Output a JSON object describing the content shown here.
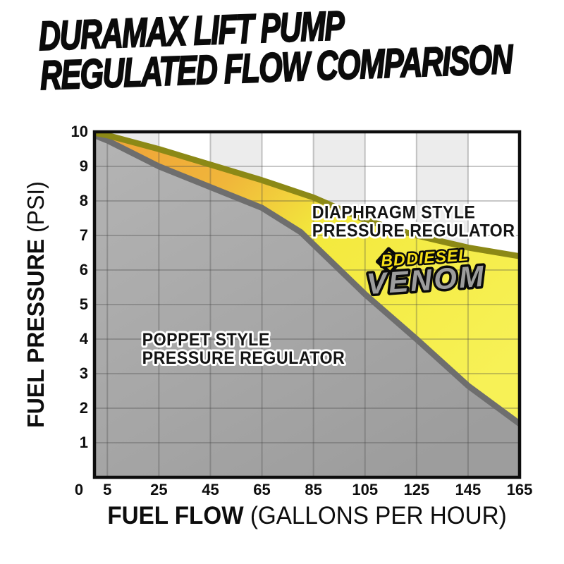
{
  "title": {
    "line1": "DURAMAX LIFT PUMP",
    "line2": "REGULATED FLOW COMPARISON"
  },
  "chart_data": {
    "type": "area",
    "xlim": [
      0,
      165
    ],
    "ylim": [
      0,
      10
    ],
    "x_ticks": [
      5,
      25,
      45,
      65,
      85,
      105,
      125,
      145,
      165
    ],
    "y_ticks": [
      0,
      1,
      2,
      3,
      4,
      5,
      6,
      7,
      8,
      9,
      10
    ],
    "origin_label": "0",
    "grid": true,
    "legend_position": "in-plot annotations",
    "x_axis_label": {
      "bold": "FUEL FLOW",
      "regular": "(GALLONS PER HOUR)"
    },
    "y_axis_label": {
      "bold": "FUEL PRESSURE",
      "regular": "(PSI)"
    },
    "background_band_edges": [
      0,
      25,
      45,
      65,
      85,
      105,
      125,
      145,
      165
    ],
    "series": [
      {
        "name": "diaphragm-style-pressure-regulator",
        "label_lines": [
          "DIAPHRAGM STYLE",
          "PRESSURE REGULATOR"
        ],
        "points": [
          [
            0,
            9.97
          ],
          [
            5,
            9.9
          ],
          [
            25,
            9.5
          ],
          [
            45,
            9.05
          ],
          [
            65,
            8.6
          ],
          [
            85,
            8.1
          ],
          [
            105,
            7.45
          ],
          [
            125,
            7.0
          ],
          [
            145,
            6.65
          ],
          [
            165,
            6.4
          ]
        ]
      },
      {
        "name": "poppet-style-pressure-regulator",
        "label_lines": [
          "POPPET STYLE",
          "PRESSURE REGULATOR"
        ],
        "points": [
          [
            0,
            9.9
          ],
          [
            5,
            9.75
          ],
          [
            25,
            9.0
          ],
          [
            45,
            8.4
          ],
          [
            65,
            7.8
          ],
          [
            80,
            7.1
          ],
          [
            105,
            5.3
          ],
          [
            125,
            4.0
          ],
          [
            145,
            2.65
          ],
          [
            165,
            1.55
          ]
        ]
      }
    ],
    "annotations": [
      {
        "id": "diaphragm-label",
        "series": 0,
        "anchor_gph_psi": [
          84.5,
          7.5
        ],
        "align": "left"
      },
      {
        "id": "poppet-label",
        "series": 1,
        "anchor_gph_psi": [
          18.5,
          3.82
        ],
        "align": "left"
      }
    ],
    "logo": {
      "word1": "BD",
      "word2": "DIESEL",
      "word3": "VENOM",
      "anchor_gph_psi": [
        128.5,
        5.95
      ],
      "rotation_deg": -4
    }
  },
  "colors": {
    "title_text": "#0b0b0b",
    "band_gray": "#ececec",
    "band_white": "#ffffff",
    "gridline": "rgba(70,70,70,0.30)",
    "plot_border": "#0d0d0d",
    "area_orange": "#efa138",
    "area_yellow": "#f3e93d",
    "area_yellow_light": "#f7f156",
    "diaphragm_stroke": "#8c8916",
    "poppet_fill_light": "#b4b4b4",
    "poppet_fill_dark": "#9d9d9d",
    "poppet_stroke": "#6e6e6e",
    "axis_text": "#0d0d0d",
    "annotation_fill": "#141414",
    "annotation_outline": "#ffffff",
    "logo_yellow": "#f6df16",
    "logo_outline": "#0a0a0a",
    "venom_gray": "#9c9c9c"
  }
}
